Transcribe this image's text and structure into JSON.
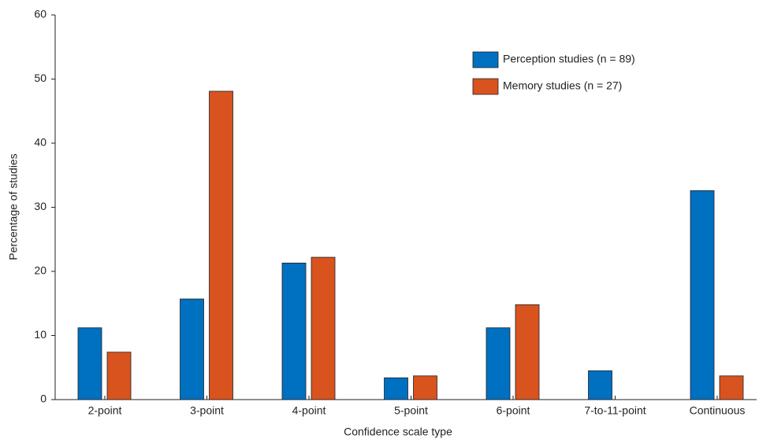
{
  "chart_data": {
    "type": "bar",
    "x_label": "Confidence scale type",
    "y_label": "Percentage of studies",
    "categories": [
      "2-point",
      "3-point",
      "4-point",
      "5-point",
      "6-point",
      "7-to-11-point",
      "Continuous"
    ],
    "series": [
      {
        "name": "Perception studies (n = 89)",
        "color": "#0070c0",
        "values": [
          11.2,
          15.7,
          21.3,
          3.4,
          11.2,
          4.5,
          32.6
        ]
      },
      {
        "name": "Memory studies (n = 27)",
        "color": "#d9531e",
        "values": [
          7.4,
          48.1,
          22.2,
          3.7,
          14.8,
          0,
          3.7
        ]
      }
    ],
    "ylim": [
      0,
      60
    ],
    "yticks": [
      0,
      10,
      20,
      30,
      40,
      50,
      60
    ],
    "grid": false,
    "legend": "upper right"
  }
}
